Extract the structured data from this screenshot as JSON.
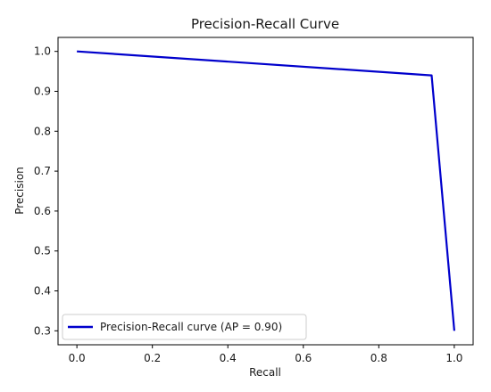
{
  "chart_data": {
    "type": "line",
    "title": "Precision-Recall Curve",
    "xlabel": "Recall",
    "ylabel": "Precision",
    "xlim": [
      -0.05,
      1.05
    ],
    "ylim": [
      0.265,
      1.035
    ],
    "xticks": [
      "0.0",
      "0.2",
      "0.4",
      "0.6",
      "0.8",
      "1.0"
    ],
    "yticks": [
      "0.3",
      "0.4",
      "0.5",
      "0.6",
      "0.7",
      "0.8",
      "0.9",
      "1.0"
    ],
    "grid": false,
    "legend_position": "lower-left",
    "series": [
      {
        "name": "Precision-Recall curve (AP = 0.90)",
        "color": "#0000cc",
        "x": [
          0.0,
          0.94,
          1.0
        ],
        "y": [
          1.0,
          0.94,
          0.3
        ]
      }
    ]
  }
}
